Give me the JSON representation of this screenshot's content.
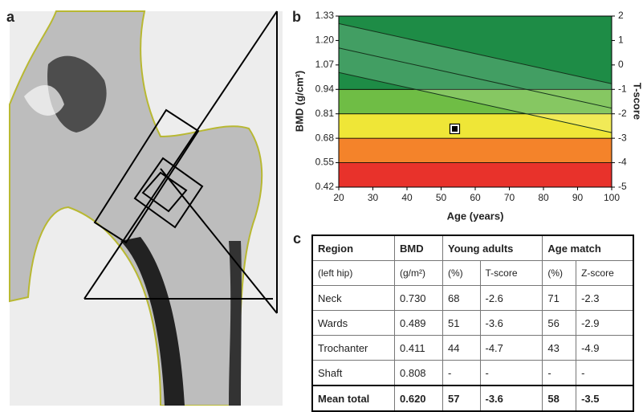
{
  "panel_labels": [
    "a",
    "b",
    "c"
  ],
  "chart_data": {
    "type": "line",
    "xlabel": "Age (years)",
    "ylabel": "BMD (g/cm²)",
    "y2label": "T-score",
    "xlim": [
      20,
      100
    ],
    "xticks": [
      20,
      30,
      40,
      50,
      60,
      70,
      80,
      90,
      100
    ],
    "ylim": [
      0.42,
      1.33
    ],
    "yticks": [
      0.42,
      0.55,
      0.68,
      0.81,
      0.94,
      1.07,
      {
        "value": 1.2,
        "label": "1.20"
      },
      1.33
    ],
    "y2lim": [
      -5,
      2
    ],
    "y2ticks": [
      -5,
      -4,
      -3,
      -2,
      -1,
      0,
      1,
      2
    ],
    "bands": [
      {
        "from": 0.42,
        "to": 0.55,
        "color": "#e8322b"
      },
      {
        "from": 0.55,
        "to": 0.68,
        "color": "#f4832a"
      },
      {
        "from": 0.68,
        "to": 0.81,
        "color": "#efe637"
      },
      {
        "from": 0.81,
        "to": 0.94,
        "color": "#6fbd45"
      },
      {
        "from": 0.94,
        "to": 1.33,
        "color": "#1e8c46"
      }
    ],
    "x": [
      20,
      100
    ],
    "series": [
      {
        "color": "#15331c",
        "values": [
          1.29,
          0.97
        ]
      },
      {
        "color": "#15331c",
        "values": [
          1.16,
          0.84
        ]
      },
      {
        "color": "#15331c",
        "values": [
          1.03,
          0.71
        ]
      }
    ],
    "patient": {
      "x": 54,
      "y": 0.73
    }
  },
  "table": {
    "header_top": [
      "Region",
      "BMD",
      "Young adults",
      "Age match"
    ],
    "header_sub": [
      "(left hip)",
      "(g/m²)",
      "(%)",
      "T-score",
      "(%)",
      "Z-score"
    ],
    "rows": [
      [
        "Neck",
        "0.730",
        "68",
        "-2.6",
        "71",
        "-2.3"
      ],
      [
        "Wards",
        "0.489",
        "51",
        "-3.6",
        "56",
        "-2.9"
      ],
      [
        "Trochanter",
        "0.411",
        "44",
        "-4.7",
        "43",
        "-4.9"
      ],
      [
        "Shaft",
        "0.808",
        "-",
        "-",
        "-",
        "-"
      ],
      [
        "Mean total",
        "0.620",
        "57",
        "-3.6",
        "58",
        "-3.5"
      ]
    ]
  }
}
